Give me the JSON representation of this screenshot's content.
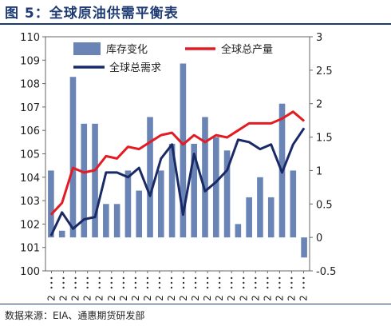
{
  "header": {
    "title": "图 5：全球原油供需平衡表"
  },
  "footer": {
    "source": "数据来源：EIA、通惠期货研发部"
  },
  "colors": {
    "bar": "#4f6fa8",
    "supply": "#e31b23",
    "demand": "#1a2a66",
    "title": "#1f3b73"
  },
  "chart_data": {
    "type": "bar+line",
    "left_axis": {
      "ylim": [
        100,
        110
      ],
      "ticks": [
        100,
        101,
        102,
        103,
        104,
        105,
        106,
        107,
        108,
        109,
        110
      ]
    },
    "right_axis": {
      "ylim": [
        -0.5,
        3
      ],
      "ticks": [
        "-0.5",
        "0",
        "0.5",
        "1",
        "1.5",
        "2",
        "2.5",
        "3"
      ]
    },
    "x_tick_label": "2",
    "x_tick_count": 22,
    "legend": [
      {
        "key": "inventory",
        "name": "库存变化",
        "kind": "bar"
      },
      {
        "key": "supply",
        "name": "全球总产量",
        "kind": "line"
      },
      {
        "key": "demand",
        "name": "全球总需求",
        "kind": "line"
      }
    ],
    "series": [
      {
        "name": "库存变化",
        "axis": "right",
        "values": [
          1.0,
          0.1,
          2.4,
          1.7,
          1.7,
          0.5,
          0.5,
          1.0,
          0.7,
          1.8,
          1.0,
          1.4,
          2.6,
          1.4,
          1.8,
          1.5,
          1.3,
          0.2,
          0.6,
          0.9,
          0.6,
          2.0,
          1.0,
          -0.3
        ]
      },
      {
        "name": "全球总产量",
        "axis": "left",
        "values": [
          102.4,
          102.9,
          104.4,
          104.2,
          104.3,
          104.9,
          104.8,
          105.3,
          105.2,
          105.5,
          105.8,
          105.9,
          105.4,
          105.8,
          105.5,
          105.8,
          105.7,
          106.0,
          106.3,
          106.3,
          106.3,
          106.5,
          106.8,
          106.4
        ]
      },
      {
        "name": "全球总需求",
        "axis": "left",
        "values": [
          101.5,
          102.5,
          101.8,
          102.2,
          102.3,
          104.2,
          104.2,
          104.0,
          104.4,
          103.2,
          104.8,
          105.4,
          102.4,
          105.0,
          103.4,
          103.8,
          104.3,
          105.6,
          105.5,
          105.2,
          105.4,
          104.2,
          105.4,
          106.1
        ]
      }
    ]
  }
}
